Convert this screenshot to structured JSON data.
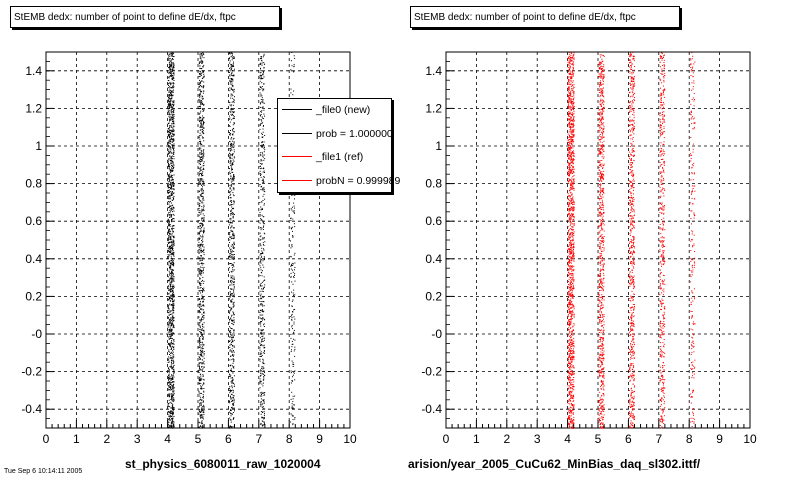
{
  "footer_text": "Tue Sep 6 10:14:11 2005",
  "legend": {
    "items": [
      {
        "label": "_file0 (new)",
        "color": "#000000"
      },
      {
        "label": "prob = 1.000000",
        "color": "#000000"
      },
      {
        "label": "_file1 (ref)",
        "color": "#ff0000"
      },
      {
        "label": "probN = 0.999989",
        "color": "#ff0000"
      }
    ]
  },
  "chart_data": [
    {
      "type": "scatter",
      "title": "StEMB dedx: number of point to define dE/dx, ftpc",
      "xlabel": "st_physics_6080011_raw_1020004",
      "ylabel": "",
      "xlim": [
        0,
        10
      ],
      "ylim": [
        -0.5,
        1.5
      ],
      "x_ticks": [
        "0",
        "1",
        "2",
        "3",
        "4",
        "5",
        "6",
        "7",
        "8",
        "9",
        "10"
      ],
      "y_ticks": [
        "-0.4",
        "-0.2",
        "-0",
        "0.2",
        "0.4",
        "0.6",
        "0.8",
        "1",
        "1.2",
        "1.4"
      ],
      "grid": true,
      "series": [
        {
          "name": "_file0 (new)",
          "color": "#000000",
          "bands": [
            {
              "x": 4.1,
              "density": 1.0
            },
            {
              "x": 5.1,
              "density": 0.6
            },
            {
              "x": 6.1,
              "density": 0.5
            },
            {
              "x": 7.1,
              "density": 0.35
            },
            {
              "x": 8.1,
              "density": 0.15
            }
          ]
        }
      ]
    },
    {
      "type": "scatter",
      "title": "StEMB dedx: number of point to define dE/dx, ftpc",
      "xlabel": "arision/year_2005_CuCu62_MinBias_daq_sl302.ittf/",
      "ylabel": "",
      "xlim": [
        0,
        10
      ],
      "ylim": [
        -0.5,
        1.5
      ],
      "x_ticks": [
        "0",
        "1",
        "2",
        "3",
        "4",
        "5",
        "6",
        "7",
        "8",
        "9",
        "10"
      ],
      "y_ticks": [
        "-0.4",
        "-0.2",
        "-0",
        "0.2",
        "0.4",
        "0.6",
        "0.8",
        "1",
        "1.2",
        "1.4"
      ],
      "grid": true,
      "series": [
        {
          "name": "_file1 (ref)",
          "color": "#ff0000",
          "bands": [
            {
              "x": 4.1,
              "density": 1.0
            },
            {
              "x": 5.1,
              "density": 0.6
            },
            {
              "x": 6.1,
              "density": 0.5
            },
            {
              "x": 7.1,
              "density": 0.35
            },
            {
              "x": 8.1,
              "density": 0.15
            }
          ]
        }
      ]
    }
  ]
}
